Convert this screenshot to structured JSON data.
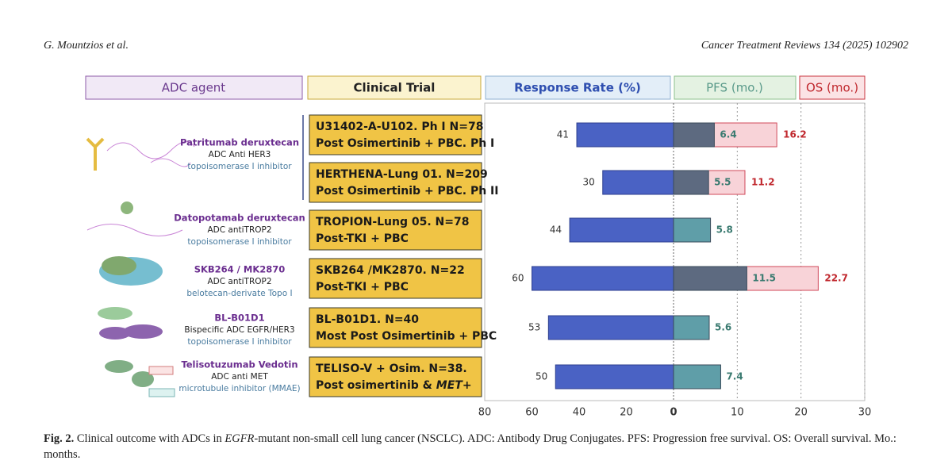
{
  "header": {
    "authors": "G. Mountzios et al.",
    "journal": "Cancer Treatment Reviews 134 (2025) 102902"
  },
  "figure": {
    "column_headers": [
      "ADC agent",
      "Clinical Trial"
    ],
    "agents": [
      {
        "name": "Patritumab deruxtecan",
        "type": "ADC Anti HER3",
        "payload": "topoisomerase I inhibitor"
      },
      {
        "name": "Datopotamab deruxtecan",
        "type": "ADC antiTROP2",
        "payload": "topoisomerase I inhibitor"
      },
      {
        "name": "SKB264 / MK2870",
        "type": "ADC antiTROP2",
        "payload": "belotecan-derivate Topo I"
      },
      {
        "name": "BL-B01D1",
        "type": "Bispecific ADC EGFR/HER3",
        "payload": "topoisomerase I inhibitor"
      },
      {
        "name": "Telisotuzumab Vedotin",
        "type": "ADC anti MET",
        "payload": "microtubule inhibitor (MMAE)"
      }
    ],
    "trials": [
      {
        "lines": [
          [
            "U31402-A-U102. Ph I N=78"
          ],
          [
            "Post Osimertinib + PBC. Ph I"
          ]
        ]
      },
      {
        "lines": [
          [
            "HERTHENA-Lung 01. N=209"
          ],
          [
            "Post Osimertinib + PBC. Ph II"
          ]
        ]
      },
      {
        "lines": [
          [
            "TROPION-Lung 05. N=78"
          ],
          [
            "Post-TKI + PBC"
          ]
        ]
      },
      {
        "lines": [
          [
            "SKB264 /MK2870. N=22"
          ],
          [
            "Post-TKI + PBC"
          ]
        ]
      },
      {
        "lines": [
          [
            "BL-B01D1. N=40"
          ],
          [
            "Most Post Osimertinib + PBC"
          ]
        ]
      },
      {
        "lines": [
          [
            "TELISO-V + Osim. N=38."
          ],
          [
            "Post osimertinib & ",
            "MET",
            "+"
          ]
        ]
      }
    ]
  },
  "chart_data": {
    "type": "bar",
    "series": [
      {
        "name": "Response Rate (%)",
        "color": "#4a62c4",
        "values": [
          41,
          30,
          44,
          60,
          53,
          50
        ]
      },
      {
        "name": "PFS (mo.)",
        "color": "#5f9ea8",
        "colors": [
          "#5d6a80",
          "#5d6a80",
          "#5f9ea8",
          "#5d6a80",
          "#5f9ea8",
          "#5f9ea8"
        ],
        "values": [
          6.4,
          5.5,
          5.8,
          11.5,
          5.6,
          7.4
        ]
      },
      {
        "name": "OS (mo.)",
        "color": "#f8d3d8",
        "values": [
          16.2,
          11.2,
          null,
          22.7,
          null,
          null
        ]
      }
    ],
    "xlim": [
      80,
      0
    ],
    "xticks": [
      80,
      60,
      40,
      20,
      0
    ],
    "x2lim": [
      0,
      30
    ],
    "x2ticks": [
      10,
      20,
      30
    ],
    "grid": true
  },
  "caption": {
    "label": "Fig. 2.",
    "parts": [
      " Clinical outcome with ADCs in ",
      "EGFR",
      "-mutant non-small cell lung cancer (NSCLC). ADC: Antibody Drug Conjugates. PFS: Progression free survival. OS: Overall survival. Mo.: months."
    ]
  }
}
